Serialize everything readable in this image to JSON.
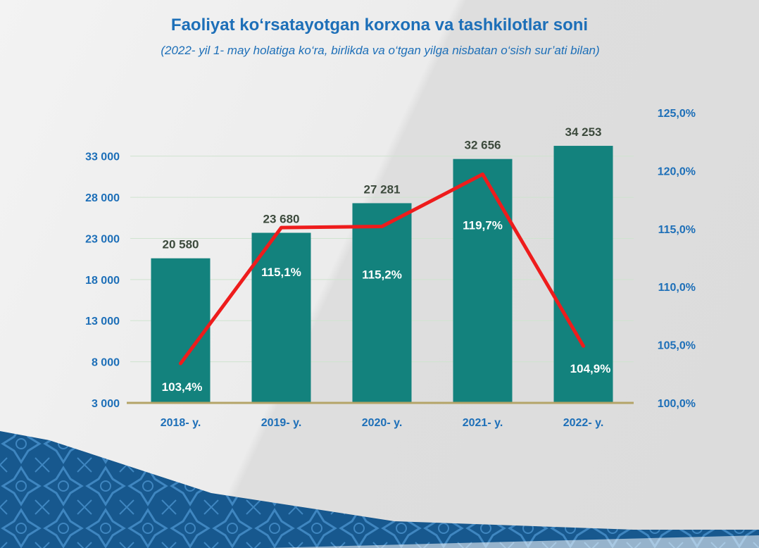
{
  "header": {
    "title": "Faoliyat ko‘rsatayotgan korxona va tashkilotlar soni",
    "subtitle": "(2022- yil 1- may holatiga ko‘ra, birlikda va o‘tgan yilga nisbatan o‘sish sur’ati bilan)"
  },
  "colors": {
    "bar": "#13827d",
    "line": "#ee1c1c",
    "axis_text": "#1d6fb8",
    "baseline": "#b4a468",
    "pattern": "#1e5f96"
  },
  "chart_data": {
    "type": "bar",
    "categories": [
      "2018- y.",
      "2019- y.",
      "2020- y.",
      "2021- y.",
      "2022- y."
    ],
    "values": [
      20580,
      23680,
      27281,
      32656,
      34253
    ],
    "value_labels": [
      "20 580",
      "23 680",
      "27 281",
      "32 656",
      "34 253"
    ],
    "ylim": [
      3000,
      34000
    ],
    "yticks": [
      3000,
      8000,
      13000,
      18000,
      23000,
      28000,
      33000
    ],
    "ytick_labels": [
      "3 000",
      "8 000",
      "13 000",
      "18 000",
      "23 000",
      "28 000",
      "33 000"
    ],
    "secondary": {
      "type": "line",
      "values": [
        103.4,
        115.1,
        115.2,
        119.7,
        104.9
      ],
      "value_labels": [
        "103,4%",
        "115,1%",
        "115,2%",
        "119,7%",
        "104,9%"
      ],
      "ylim": [
        100,
        125
      ],
      "yticks": [
        100,
        105,
        110,
        115,
        120,
        125
      ],
      "ytick_labels": [
        "100,0%",
        "105,0%",
        "110,0%",
        "115,0%",
        "120,0%",
        "125,0%"
      ]
    },
    "grid": true
  }
}
